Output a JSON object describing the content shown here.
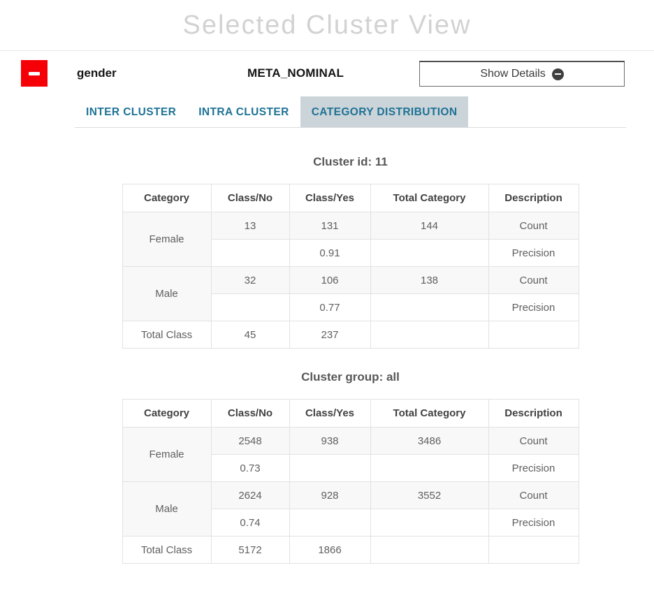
{
  "page_title": "Selected Cluster View",
  "panel": {
    "feature_name": "gender",
    "feature_type": "META_NOMINAL",
    "show_details_label": "Show Details"
  },
  "icons": {
    "collapse": "minus-icon",
    "details": "minus-circle-icon"
  },
  "colors": {
    "accent_red": "#f60008",
    "tab_text": "#1e7296",
    "active_tab_bg": "#cbd4d8"
  },
  "tabs": [
    {
      "label": "INTER CLUSTER",
      "active": false
    },
    {
      "label": "INTRA CLUSTER",
      "active": false
    },
    {
      "label": "CATEGORY DISTRIBUTION",
      "active": true
    }
  ],
  "sections": [
    {
      "heading": "Cluster id: 11",
      "columns": [
        "Category",
        "Class/No",
        "Class/Yes",
        "Total Category",
        "Description"
      ],
      "rows": {
        "female": {
          "category": "Female",
          "count_no": "13",
          "count_yes": "131",
          "count_total": "144",
          "count_desc": "Count",
          "prec_no": "",
          "prec_yes": "0.91",
          "prec_total": "",
          "prec_desc": "Precision"
        },
        "male": {
          "category": "Male",
          "count_no": "32",
          "count_yes": "106",
          "count_total": "138",
          "count_desc": "Count",
          "prec_no": "",
          "prec_yes": "0.77",
          "prec_total": "",
          "prec_desc": "Precision"
        },
        "total": {
          "label": "Total Class",
          "no": "45",
          "yes": "237",
          "total": "",
          "desc": ""
        }
      }
    },
    {
      "heading": "Cluster group: all",
      "columns": [
        "Category",
        "Class/No",
        "Class/Yes",
        "Total Category",
        "Description"
      ],
      "rows": {
        "female": {
          "category": "Female",
          "count_no": "2548",
          "count_yes": "938",
          "count_total": "3486",
          "count_desc": "Count",
          "prec_no": "0.73",
          "prec_yes": "",
          "prec_total": "",
          "prec_desc": "Precision"
        },
        "male": {
          "category": "Male",
          "count_no": "2624",
          "count_yes": "928",
          "count_total": "3552",
          "count_desc": "Count",
          "prec_no": "0.74",
          "prec_yes": "",
          "prec_total": "",
          "prec_desc": "Precision"
        },
        "total": {
          "label": "Total Class",
          "no": "5172",
          "yes": "1866",
          "total": "",
          "desc": ""
        }
      }
    }
  ]
}
